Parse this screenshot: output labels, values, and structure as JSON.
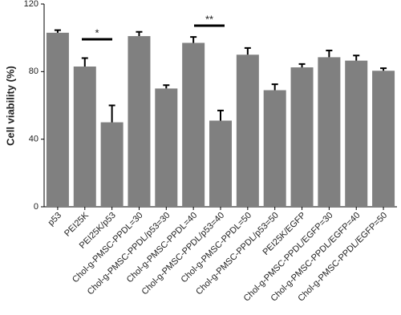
{
  "chart_data": {
    "type": "bar",
    "y_label": "Cell viability (%)",
    "categories": [
      "p53",
      "PEI25K",
      "PEI25K/p53",
      "Chol-g-PMSC-PPDL=30",
      "Chol-g-PMSC-PPDL/p53=30",
      "Chol-g-PMSC-PPDL=40",
      "Chol-g-PMSC-PPDL/p53=40",
      "Chol-g-PMSC-PPDL=50",
      "Chol-g-PMSC-PPDL/p53=50",
      "PEI25K/EGFP",
      "Chol-g-PMSC-PPDL/EGFP=30",
      "Chol-g-PMSC-PPDL/EGFP=40",
      "Chol-g-PMSC-PPDL/EGFP=50"
    ],
    "values": [
      103,
      83,
      50,
      101,
      70,
      97,
      51,
      90,
      69,
      82.5,
      88.5,
      86.5,
      80.5
    ],
    "errors": [
      1.5,
      5,
      10,
      2.5,
      2,
      3.5,
      6,
      4,
      3.5,
      2,
      4,
      3,
      1.5
    ],
    "color": "#808080",
    "error_color": "#000000",
    "ylim": [
      0,
      120
    ],
    "yticks": [
      0,
      40,
      80,
      120
    ],
    "annotations": [
      "*",
      "**"
    ]
  }
}
